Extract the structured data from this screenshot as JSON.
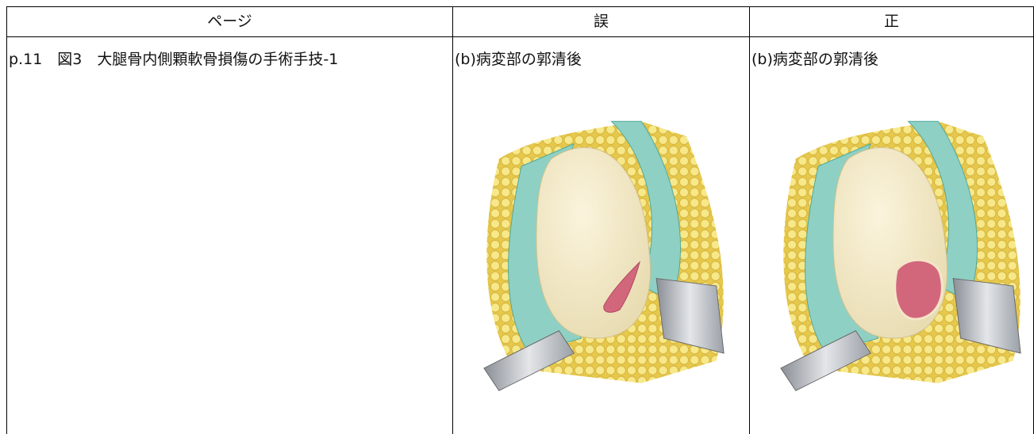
{
  "table": {
    "header": [
      "ページ",
      "誤",
      "正"
    ],
    "rows": [
      [
        "p.11　図3　大腿骨内側顆軟骨損傷の手術手技-1",
        "(b)病変部の郭清後",
        "(b)病変部の郭清後"
      ]
    ]
  }
}
